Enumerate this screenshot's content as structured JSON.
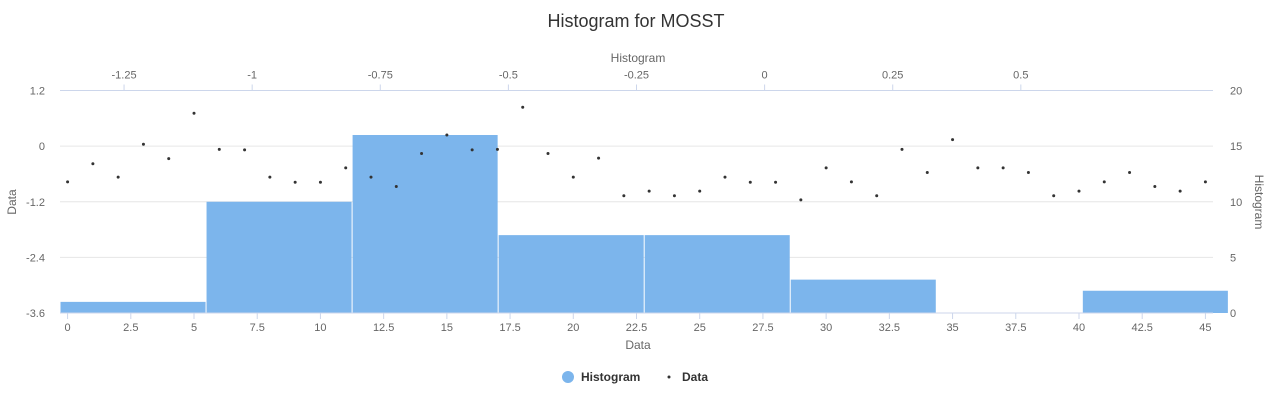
{
  "chart_data": {
    "type": "bar",
    "title": "Histogram for MOSST",
    "x_axis_bottom": {
      "title": "Data",
      "ticks": [
        0,
        2.5,
        5,
        7.5,
        10,
        12.5,
        15,
        17.5,
        20,
        22.5,
        25,
        27.5,
        30,
        32.5,
        35,
        37.5,
        40,
        42.5,
        45
      ],
      "range": [
        -0.3,
        45.3
      ]
    },
    "x_axis_top": {
      "title": "Histogram",
      "ticks": [
        -1.25,
        -1,
        -0.75,
        -0.5,
        -0.25,
        0,
        0.25,
        0.5
      ],
      "range": [
        -1.375,
        0.875
      ]
    },
    "y_axis_left": {
      "title": "Data",
      "ticks": [
        -3.6,
        -2.4,
        -1.2,
        0,
        1.2
      ],
      "range": [
        -3.6,
        1.2
      ]
    },
    "y_axis_right": {
      "title": "Histogram",
      "ticks": [
        0,
        5,
        10,
        15,
        20
      ],
      "range": [
        0,
        20
      ]
    },
    "grid": true,
    "legend": {
      "placement": "bottom-center",
      "items": [
        "Histogram",
        "Data"
      ]
    },
    "series": [
      {
        "name": "Histogram",
        "type": "column",
        "color": "#7cb5ec",
        "bins": [
          {
            "x0": -1.375,
            "x1": -1.09,
            "value": 1
          },
          {
            "x0": -1.09,
            "x1": -0.805,
            "value": 10
          },
          {
            "x0": -0.805,
            "x1": -0.52,
            "value": 16
          },
          {
            "x0": -0.52,
            "x1": -0.235,
            "value": 7
          },
          {
            "x0": -0.235,
            "x1": 0.05,
            "value": 7
          },
          {
            "x0": 0.05,
            "x1": 0.335,
            "value": 3
          },
          {
            "x0": 0.335,
            "x1": 0.62,
            "value": 0
          },
          {
            "x0": 0.62,
            "x1": 0.905,
            "value": 2
          }
        ]
      },
      {
        "name": "Data",
        "type": "scatter",
        "color": "#333333",
        "x": [
          0,
          1,
          2,
          3,
          4,
          5,
          6,
          7,
          8,
          9,
          10,
          11,
          12,
          13,
          14,
          15,
          16,
          17,
          18,
          19,
          20,
          21,
          22,
          23,
          24,
          25,
          26,
          27,
          28,
          29,
          30,
          31,
          32,
          33,
          34,
          35,
          36,
          37,
          38,
          39,
          40,
          41,
          42,
          43,
          44,
          45
        ],
        "y": [
          -0.77,
          -0.38,
          -0.67,
          0.04,
          -0.27,
          0.71,
          -0.07,
          -0.08,
          -0.67,
          -0.78,
          -0.78,
          -0.47,
          -0.67,
          -0.87,
          -0.16,
          0.24,
          -0.08,
          -0.07,
          0.84,
          -0.16,
          -0.67,
          -0.26,
          -1.07,
          -0.97,
          -1.07,
          -0.97,
          -0.67,
          -0.78,
          -0.78,
          -1.16,
          -0.47,
          -0.77,
          -1.07,
          -0.07,
          -0.57,
          0.14,
          -0.47,
          -0.47,
          -0.57,
          -1.07,
          -0.97,
          -0.77,
          -0.57,
          -0.87,
          -0.97,
          -0.77
        ]
      }
    ]
  }
}
